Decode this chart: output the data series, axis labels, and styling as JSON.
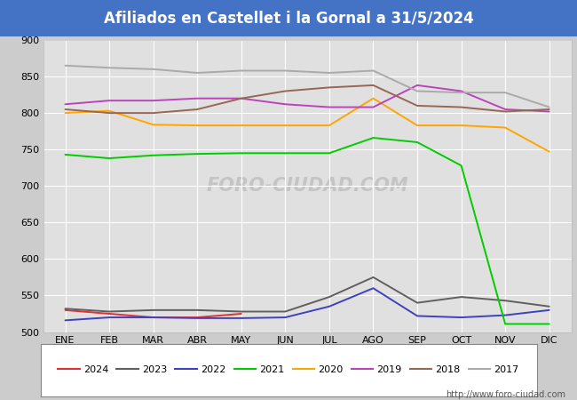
{
  "title": "Afiliados en Castellet i la Gornal a 31/5/2024",
  "title_bgcolor": "#4472c4",
  "title_fgcolor": "#ffffff",
  "months": [
    "ENE",
    "FEB",
    "MAR",
    "ABR",
    "MAY",
    "JUN",
    "JUL",
    "AGO",
    "SEP",
    "OCT",
    "NOV",
    "DIC"
  ],
  "ylim": [
    500,
    900
  ],
  "yticks": [
    500,
    550,
    600,
    650,
    700,
    750,
    800,
    850,
    900
  ],
  "series": {
    "2024": {
      "color": "#e03030",
      "data": [
        530,
        525,
        520,
        520,
        525,
        null,
        null,
        null,
        null,
        null,
        null,
        null
      ]
    },
    "2023": {
      "color": "#606060",
      "data": [
        532,
        528,
        530,
        530,
        528,
        528,
        548,
        575,
        540,
        548,
        543,
        535
      ]
    },
    "2022": {
      "color": "#4040c0",
      "data": [
        516,
        520,
        520,
        519,
        519,
        520,
        535,
        560,
        522,
        520,
        523,
        530
      ]
    },
    "2021": {
      "color": "#00cc00",
      "data": [
        743,
        738,
        742,
        744,
        745,
        745,
        745,
        766,
        760,
        728,
        511,
        511
      ]
    },
    "2020": {
      "color": "#ffa500",
      "data": [
        800,
        803,
        784,
        783,
        783,
        783,
        783,
        820,
        783,
        783,
        780,
        747
      ]
    },
    "2019": {
      "color": "#bb44bb",
      "data": [
        812,
        817,
        817,
        820,
        820,
        812,
        808,
        808,
        838,
        830,
        805,
        802
      ]
    },
    "2018": {
      "color": "#996655",
      "data": [
        805,
        800,
        800,
        805,
        820,
        830,
        835,
        838,
        810,
        808,
        802,
        805
      ]
    },
    "2017": {
      "color": "#aaaaaa",
      "data": [
        865,
        862,
        860,
        855,
        858,
        858,
        855,
        858,
        830,
        828,
        828,
        808
      ]
    }
  },
  "watermark": "FORO-CIUDAD.COM",
  "url": "http://www.foro-ciudad.com",
  "background_color": "#cccccc",
  "plot_bgcolor": "#e0e0e0",
  "grid_color": "#ffffff",
  "title_fontsize": 12,
  "tick_fontsize": 8,
  "legend_fontsize": 8
}
